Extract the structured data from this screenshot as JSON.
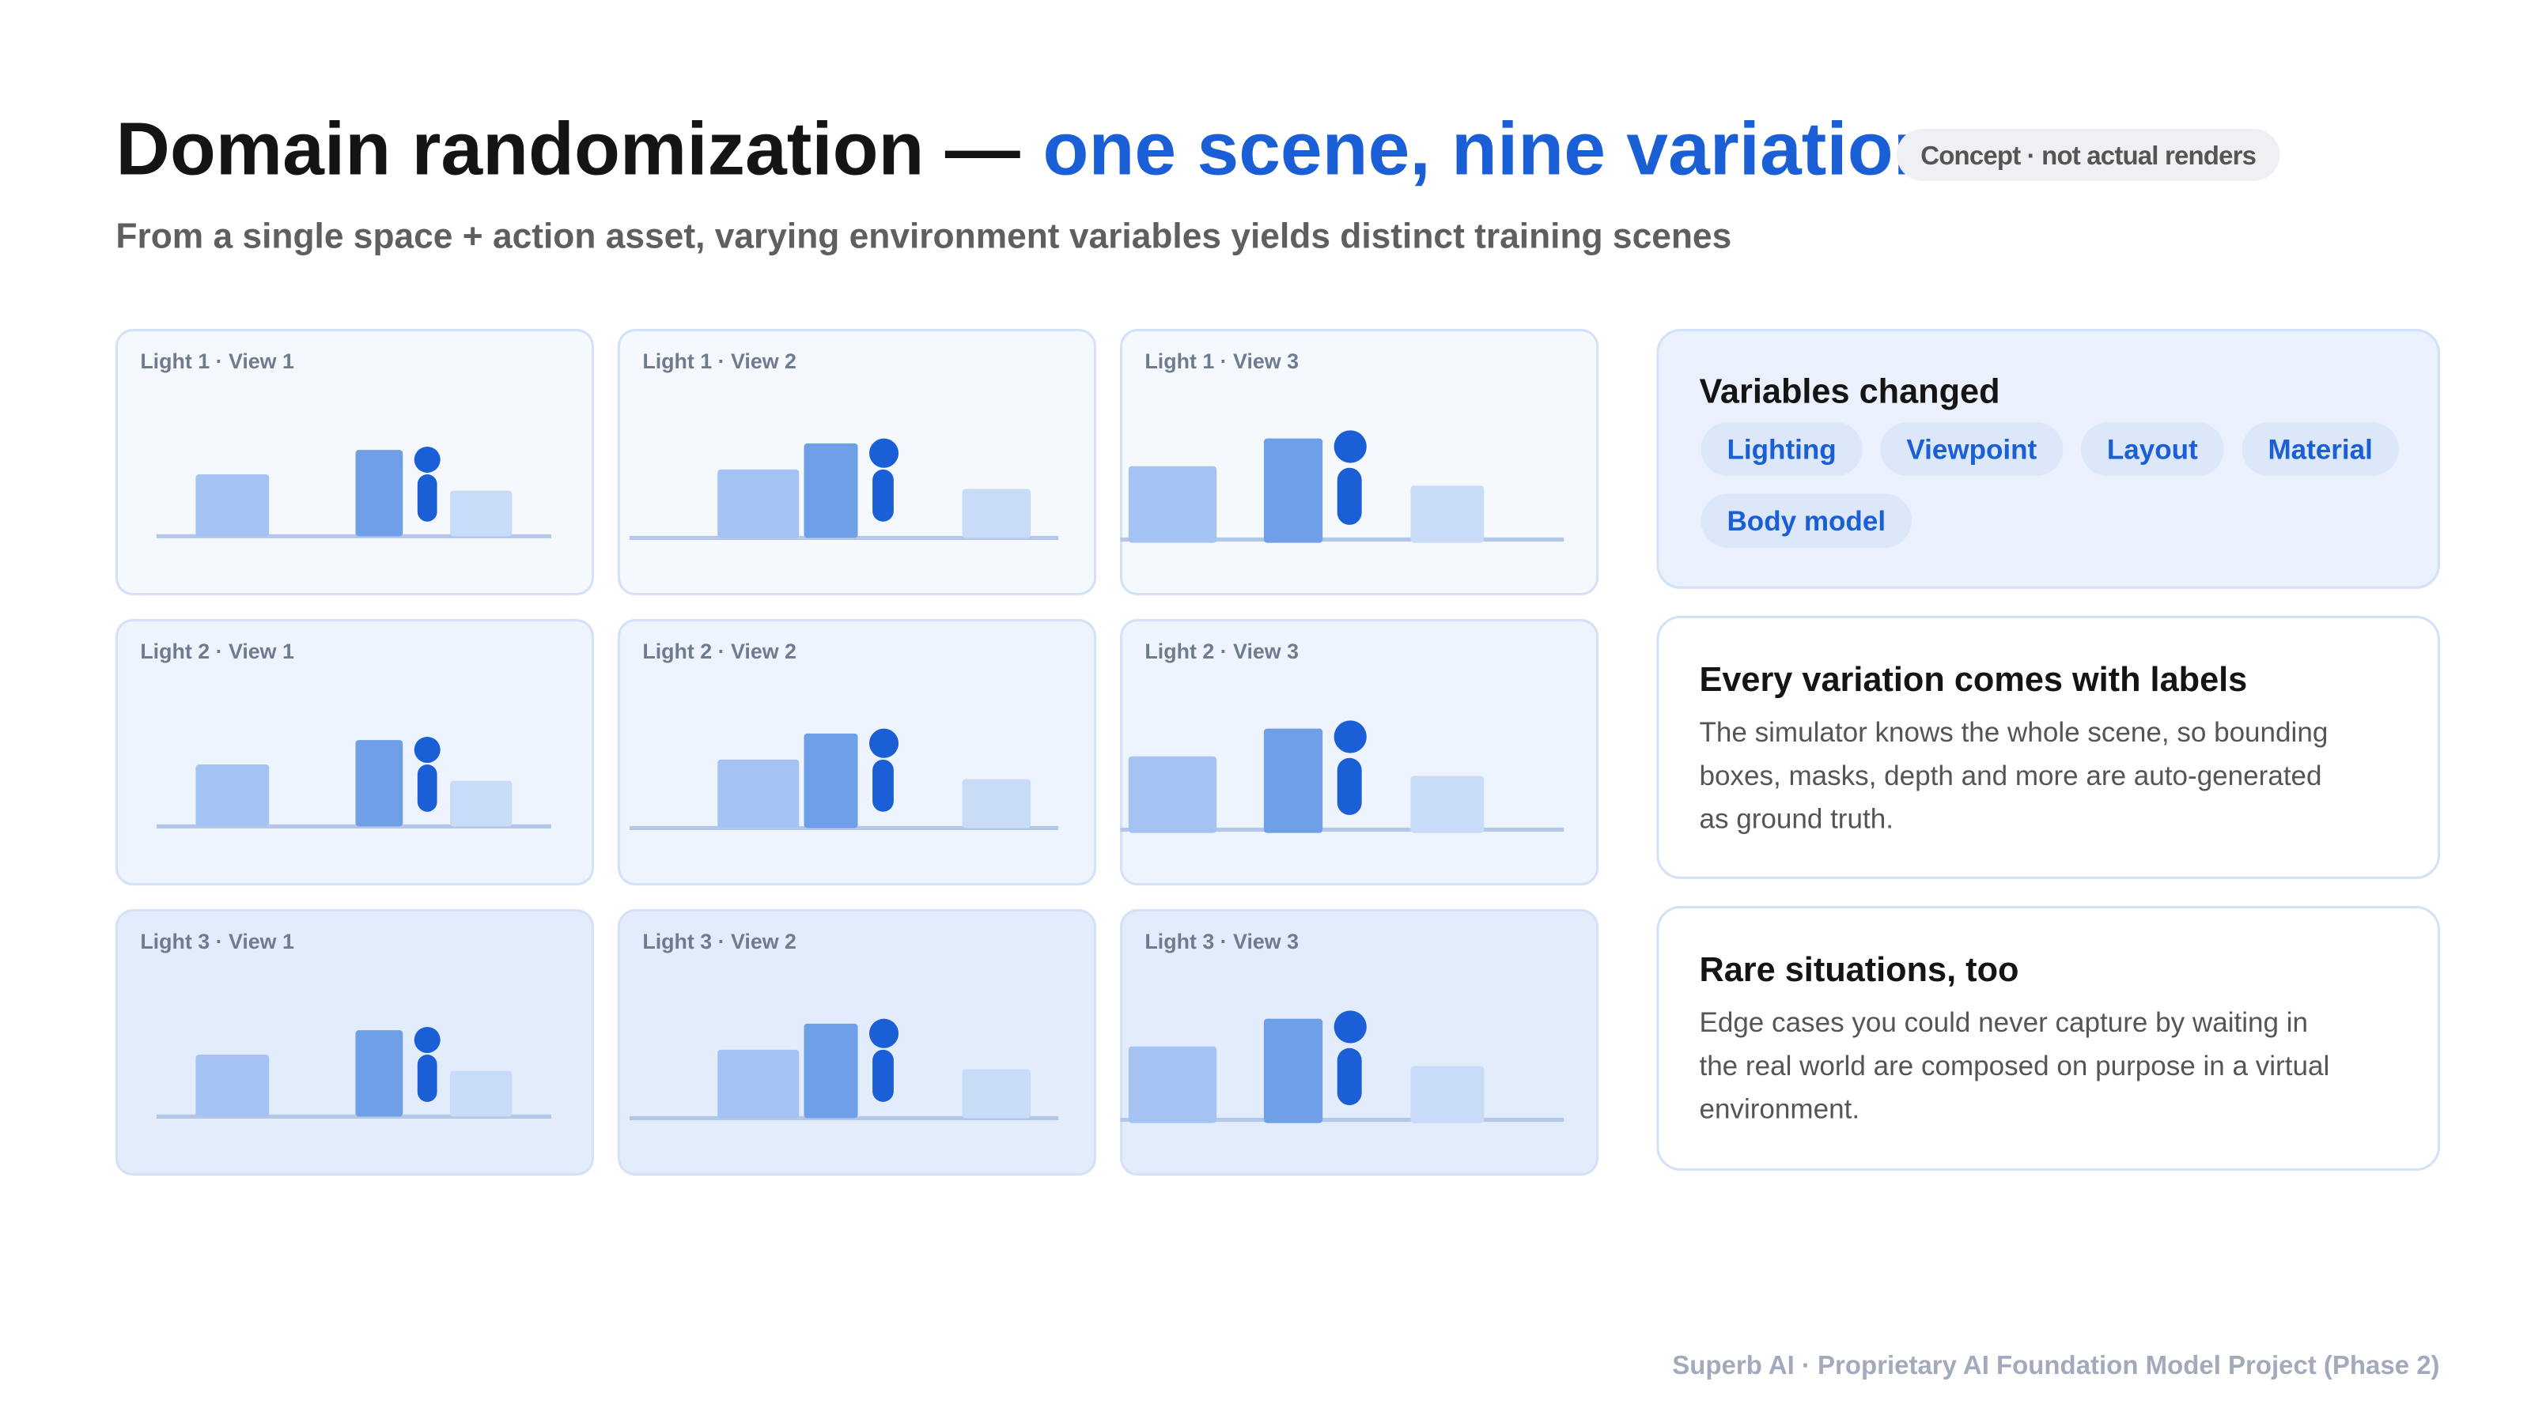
{
  "header": {
    "title": "Domain randomization —",
    "title_accent": "one scene, nine variations",
    "badge": "Concept · not actual renders",
    "subtitle": "From a single space + action asset, varying environment variables yields distinct training scenes"
  },
  "tiles": [
    "Light 1 · View 1",
    "Light 1 · View 2",
    "Light 1 · View 3",
    "Light 2 · View 1",
    "Light 2 · View 2",
    "Light 2 · View 3",
    "Light 3 · View 1",
    "Light 3 · View 2",
    "Light 3 · View 3"
  ],
  "panels": {
    "variables": {
      "title": "Variables changed",
      "tags": [
        "Lighting",
        "Viewpoint",
        "Layout",
        "Material",
        "Body model"
      ]
    },
    "labels": {
      "title": "Every variation comes with labels",
      "body_lines": [
        "The simulator knows the whole scene, so bounding",
        "boxes, masks, depth and more are auto-generated",
        "as ground truth."
      ]
    },
    "rare": {
      "title": "Rare situations, too",
      "body_lines": [
        "Edge cases you could never capture by waiting in",
        "the real world are composed on purpose in a virtual",
        "environment."
      ]
    }
  },
  "footer": "Superb AI · Proprietary AI Foundation Model Project (Phase 2)"
}
